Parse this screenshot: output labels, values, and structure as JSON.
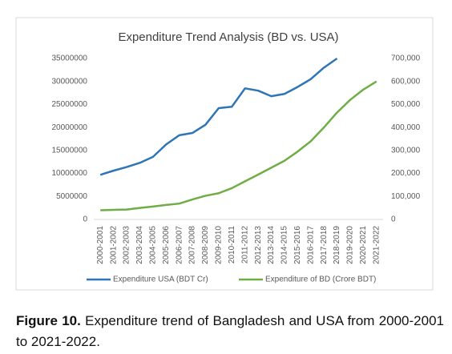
{
  "chart_data": {
    "type": "line",
    "title": "Expenditure Trend Analysis (BD vs. USA)",
    "categories": [
      "2000-2001",
      "2001-2002",
      "2002-2003",
      "2003-2004",
      "2004-2005",
      "2005-2006",
      "2006-2007",
      "2007-2008",
      "2008-2009",
      "2009-2010",
      "2010-2011",
      "2011-2012",
      "2012-2013",
      "2013-2014",
      "2014-2015",
      "2015-2016",
      "2016-2017",
      "2017-2018",
      "2018-2019",
      "2019-2020",
      "2020-2021",
      "2021-2022"
    ],
    "series": [
      {
        "name": "Expenditure USA (BDT Cr)",
        "color": "#2e75b6",
        "axis": "y",
        "values": [
          9700000,
          10600000,
          11400000,
          12300000,
          13600000,
          16300000,
          18300000,
          18800000,
          20600000,
          24200000,
          24500000,
          28500000,
          28000000,
          26800000,
          27300000,
          28800000,
          30500000,
          33000000,
          35000000,
          null,
          null,
          null
        ]
      },
      {
        "name": "Expenditure of BD (Crore BDT)",
        "color": "#70ad47",
        "axis": "y2",
        "values": [
          40000,
          42000,
          43000,
          50000,
          56000,
          63000,
          69000,
          87000,
          103000,
          114000,
          136000,
          166000,
          195000,
          225000,
          255000,
          295000,
          340000,
          400000,
          465000,
          520000,
          565000,
          600000
        ]
      }
    ],
    "ylim": [
      0,
      35000000
    ],
    "yticks": [
      0,
      5000000,
      10000000,
      15000000,
      20000000,
      25000000,
      30000000,
      35000000
    ],
    "y2lim": [
      0,
      700000
    ],
    "y2ticks": [
      0,
      {
        "value": 100000,
        "label": "100,000"
      },
      {
        "value": 200000,
        "label": "200,000"
      },
      {
        "value": 300000,
        "label": "300,000"
      },
      {
        "value": 400000,
        "label": "400,000"
      },
      {
        "value": 500000,
        "label": "500,000"
      },
      {
        "value": 600000,
        "label": "600,000"
      },
      {
        "value": 700000,
        "label": "700,000"
      }
    ],
    "grid": false,
    "legend": "bottom"
  },
  "caption": {
    "label": "Figure 10.",
    "text": "Expenditure trend of Bangladesh and USA from 2000-2001 to 2021-2022."
  }
}
